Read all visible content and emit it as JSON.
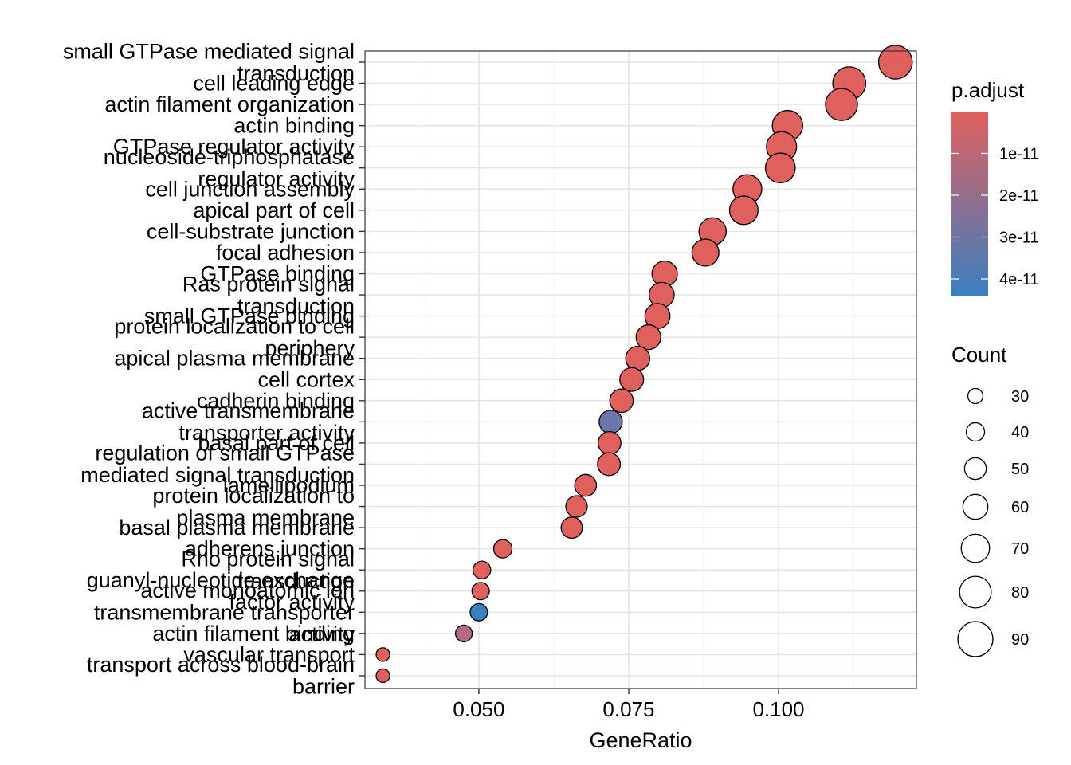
{
  "chart_data": {
    "type": "scatter",
    "xlabel": "GeneRatio",
    "ylabel": "",
    "xlim": [
      0.031,
      0.123
    ],
    "x_ticks": [
      {
        "value": 0.05,
        "label": "0.050"
      },
      {
        "value": 0.075,
        "label": "0.075"
      },
      {
        "value": 0.1,
        "label": "0.100"
      }
    ],
    "grid": true,
    "categories": [
      [
        "small GTPase mediated signal",
        "transduction"
      ],
      [
        "cell leading edge"
      ],
      [
        "actin filament organization"
      ],
      [
        "actin binding"
      ],
      [
        "GTPase regulator activity"
      ],
      [
        "nucleoside-triphosphatase",
        "regulator activity"
      ],
      [
        "cell junction assembly"
      ],
      [
        "apical part of cell"
      ],
      [
        "cell-substrate junction"
      ],
      [
        "focal adhesion"
      ],
      [
        "GTPase binding"
      ],
      [
        "Ras protein signal",
        "transduction"
      ],
      [
        "small GTPase binding"
      ],
      [
        "protein localization to cell",
        "periphery"
      ],
      [
        "apical plasma membrane"
      ],
      [
        "cell cortex"
      ],
      [
        "cadherin binding"
      ],
      [
        "active transmembrane",
        "transporter activity"
      ],
      [
        "basal part of cell"
      ],
      [
        "regulation of small GTPase",
        "mediated signal transduction"
      ],
      [
        "lamellipodium"
      ],
      [
        "protein localization to",
        "plasma membrane"
      ],
      [
        "basal plasma membrane"
      ],
      [
        "adherens junction"
      ],
      [
        "Rho protein signal",
        "transduction"
      ],
      [
        "guanyl-nucleotide exchange",
        "factor activity"
      ],
      [
        "active monoatomic ion",
        "transmembrane transporter",
        "activity"
      ],
      [
        "actin filament binding"
      ],
      [
        "vascular transport"
      ],
      [
        "transport across blood-brain",
        "barrier"
      ]
    ],
    "points": [
      {
        "gene_ratio": 0.1195,
        "count": 90,
        "p_adjust": 2e-13
      },
      {
        "gene_ratio": 0.1118,
        "count": 88,
        "p_adjust": 2e-13
      },
      {
        "gene_ratio": 0.1105,
        "count": 85,
        "p_adjust": 2e-13
      },
      {
        "gene_ratio": 0.1015,
        "count": 80,
        "p_adjust": 2e-13
      },
      {
        "gene_ratio": 0.1005,
        "count": 79,
        "p_adjust": 2e-13
      },
      {
        "gene_ratio": 0.1003,
        "count": 78,
        "p_adjust": 2e-13
      },
      {
        "gene_ratio": 0.0948,
        "count": 75,
        "p_adjust": 2e-13
      },
      {
        "gene_ratio": 0.0942,
        "count": 74,
        "p_adjust": 2e-13
      },
      {
        "gene_ratio": 0.089,
        "count": 70,
        "p_adjust": 2e-13
      },
      {
        "gene_ratio": 0.0878,
        "count": 69,
        "p_adjust": 2e-13
      },
      {
        "gene_ratio": 0.081,
        "count": 64,
        "p_adjust": 2e-13
      },
      {
        "gene_ratio": 0.0805,
        "count": 63,
        "p_adjust": 2e-13
      },
      {
        "gene_ratio": 0.0798,
        "count": 63,
        "p_adjust": 2e-13
      },
      {
        "gene_ratio": 0.0783,
        "count": 62,
        "p_adjust": 2e-13
      },
      {
        "gene_ratio": 0.0765,
        "count": 60,
        "p_adjust": 2e-13
      },
      {
        "gene_ratio": 0.0755,
        "count": 59,
        "p_adjust": 2e-13
      },
      {
        "gene_ratio": 0.0738,
        "count": 58,
        "p_adjust": 2e-13
      },
      {
        "gene_ratio": 0.072,
        "count": 57,
        "p_adjust": 3.3e-11
      },
      {
        "gene_ratio": 0.0718,
        "count": 56,
        "p_adjust": 2e-13
      },
      {
        "gene_ratio": 0.0717,
        "count": 56,
        "p_adjust": 2e-13
      },
      {
        "gene_ratio": 0.0678,
        "count": 53,
        "p_adjust": 2e-13
      },
      {
        "gene_ratio": 0.0663,
        "count": 52,
        "p_adjust": 2e-13
      },
      {
        "gene_ratio": 0.0655,
        "count": 51,
        "p_adjust": 2e-13
      },
      {
        "gene_ratio": 0.054,
        "count": 42,
        "p_adjust": 2e-13
      },
      {
        "gene_ratio": 0.0505,
        "count": 40,
        "p_adjust": 2e-13
      },
      {
        "gene_ratio": 0.0503,
        "count": 39,
        "p_adjust": 2e-13
      },
      {
        "gene_ratio": 0.05,
        "count": 39,
        "p_adjust": 4.4e-11
      },
      {
        "gene_ratio": 0.0475,
        "count": 37,
        "p_adjust": 1.6e-11
      },
      {
        "gene_ratio": 0.034,
        "count": 27,
        "p_adjust": 2e-13
      },
      {
        "gene_ratio": 0.034,
        "count": 27,
        "p_adjust": 2e-13
      }
    ],
    "color_legend": {
      "title": "p.adjust",
      "domain": [
        2e-13,
        4.4e-11
      ],
      "low_color": "#e0605e",
      "high_color": "#3a7fc0",
      "breaks": [
        {
          "value": 1e-11,
          "label": "1e-11"
        },
        {
          "value": 2e-11,
          "label": "2e-11"
        },
        {
          "value": 3e-11,
          "label": "3e-11"
        },
        {
          "value": 4e-11,
          "label": "4e-11"
        }
      ]
    },
    "size_legend": {
      "title": "Count",
      "breaks": [
        30,
        40,
        50,
        60,
        70,
        80,
        90
      ]
    }
  }
}
